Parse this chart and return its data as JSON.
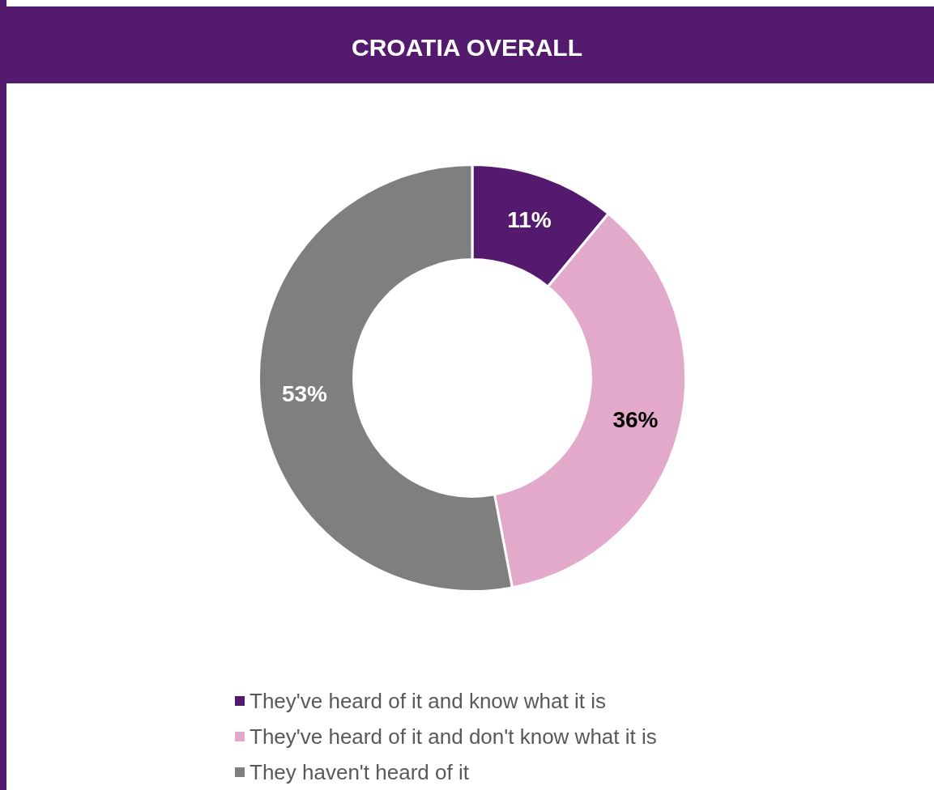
{
  "chart_data": {
    "type": "donut",
    "title": "CROATIA OVERALL",
    "categories": [
      "They've heard of it and know what it is",
      "They've heard of it and don't know what it is",
      "They haven't heard of it"
    ],
    "values": [
      11,
      36,
      53
    ],
    "colors": [
      "#531a6e",
      "#e3a9cb",
      "#7f7f7f"
    ],
    "value_labels": [
      "11%",
      "36%",
      "53%"
    ],
    "legend": "bottom"
  }
}
